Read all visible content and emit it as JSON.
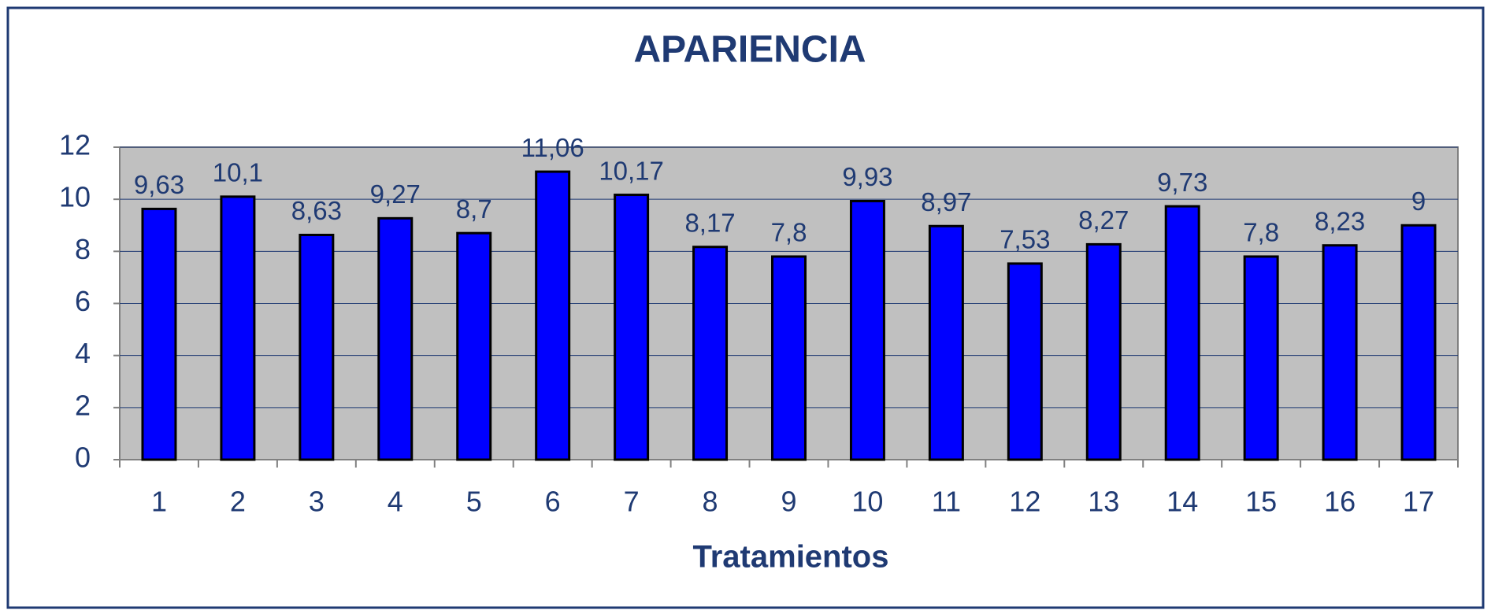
{
  "chart_data": {
    "type": "bar",
    "title": "APARIENCIA",
    "x_label": "Tratamientos",
    "categories": [
      "1",
      "2",
      "3",
      "4",
      "5",
      "6",
      "7",
      "8",
      "9",
      "10",
      "11",
      "12",
      "13",
      "14",
      "15",
      "16",
      "17"
    ],
    "values": [
      9.63,
      10.1,
      8.63,
      9.27,
      8.7,
      11.06,
      10.17,
      8.17,
      7.8,
      9.93,
      8.97,
      7.53,
      8.27,
      9.73,
      7.8,
      8.23,
      9
    ],
    "value_labels": [
      "9,63",
      "10,1",
      "8,63",
      "9,27",
      "8,7",
      "11,06",
      "10,17",
      "8,17",
      "7,8",
      "9,93",
      "8,97",
      "7,53",
      "8,27",
      "9,73",
      "7,8",
      "8,23",
      "9"
    ],
    "color": "#0000ff",
    "ylim": [
      0,
      12
    ],
    "yticks": [
      0,
      2,
      4,
      6,
      8,
      10,
      12
    ],
    "grid": true
  }
}
